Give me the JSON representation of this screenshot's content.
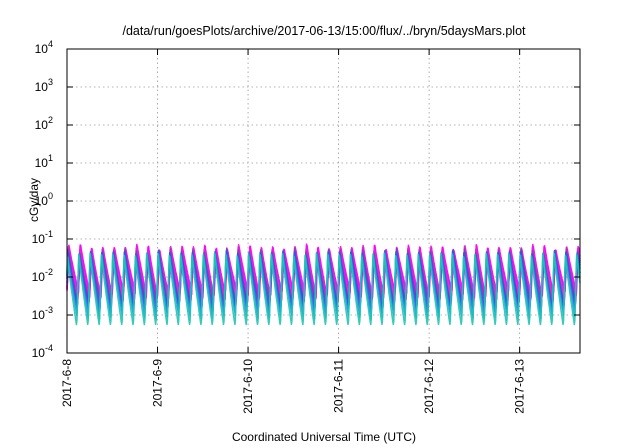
{
  "chart_data": {
    "type": "line",
    "title": "/data/run/goesPlots/archive/2017-06-13/15:00/flux/../bryn/5daysMars.plot",
    "xlabel": "Coordinated Universal Time (UTC)",
    "ylabel": "cGy/day",
    "yscale": "log",
    "ylim": [
      0.0001,
      10000
    ],
    "xlim": [
      "2017-06-08 00:00",
      "2017-06-13 16:00"
    ],
    "grid": true,
    "legend": "none",
    "y_ticks": [
      {
        "value": 0.0001,
        "label": "10-4",
        "base": "10",
        "exp": "-4"
      },
      {
        "value": 0.001,
        "label": "10-3",
        "base": "10",
        "exp": "-3"
      },
      {
        "value": 0.01,
        "label": "10-2",
        "base": "10",
        "exp": "-2"
      },
      {
        "value": 0.1,
        "label": "10-1",
        "base": "10",
        "exp": "-1"
      },
      {
        "value": 1,
        "label": "100",
        "base": "10",
        "exp": "0"
      },
      {
        "value": 10,
        "label": "101",
        "base": "10",
        "exp": "1"
      },
      {
        "value": 100,
        "label": "102",
        "base": "10",
        "exp": "2"
      },
      {
        "value": 1000,
        "label": "103",
        "base": "10",
        "exp": "3"
      },
      {
        "value": 10000,
        "label": "104",
        "base": "10",
        "exp": "4"
      }
    ],
    "x_ticks": [
      "2017-6-8",
      "2017-6-9",
      "2017-6-10",
      "2017-6-11",
      "2017-6-12",
      "2017-6-13"
    ],
    "pattern": {
      "cycles_per_day": 8,
      "series_count": 9,
      "peak_range": [
        0.025,
        0.08
      ],
      "trough_range": [
        0.0005,
        0.005
      ]
    },
    "series_colors": [
      "#ff00ff",
      "#ff00ff",
      "#e020e0",
      "#cc33cc",
      "#8a3ab9",
      "#5b3fd1",
      "#2b5be8",
      "#1a9edb",
      "#20c4b4"
    ]
  }
}
